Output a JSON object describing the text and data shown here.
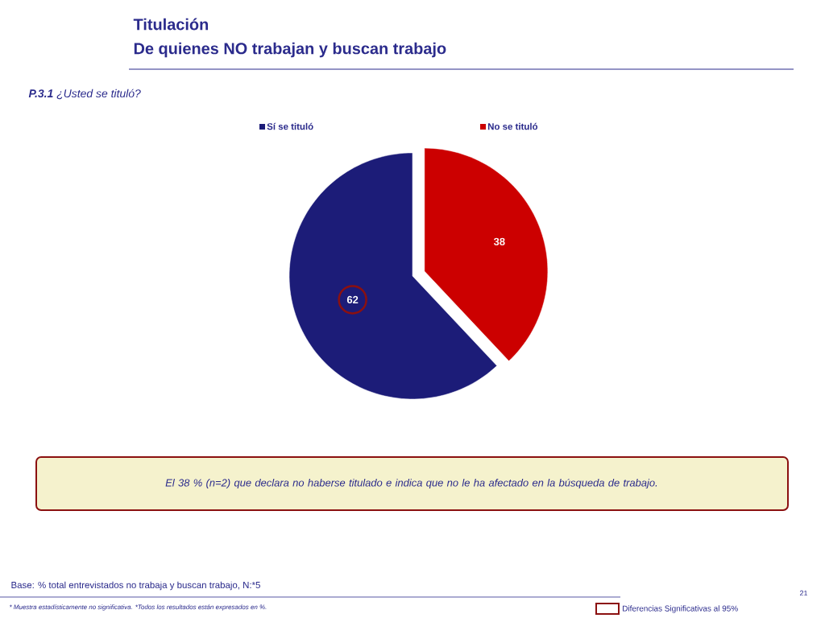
{
  "chart_data": {
    "type": "pie",
    "title": "Titulación",
    "subtitle": "De quienes NO trabajan y buscan trabajo",
    "categories": [
      "Sí se tituló",
      "No se tituló"
    ],
    "values": [
      62,
      38
    ],
    "colors": [
      "#1c1c78",
      "#cc0000"
    ],
    "data_labels": true,
    "legend": "top",
    "annotations": [
      "**P.3.1** ¿Usted se tituló?",
      "El 38 % (n=2) que declara no haberse titulado e indica que no le ha afectado en la búsqueda de trabajo.",
      "Base: % total entrevistados no trabaja y buscan trabajo, N:*5",
      "* Muestra estadísticamente no significativa. *Todos los resultados están expresados en %.",
      "Diferencias Significativas al 95%",
      "21"
    ]
  }
}
